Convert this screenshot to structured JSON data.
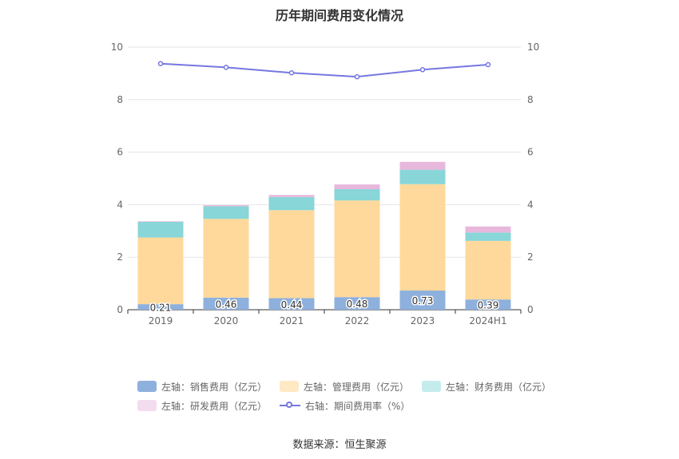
{
  "title": "历年期间费用变化情况",
  "source": "数据来源：恒生聚源",
  "colors": {
    "sales": "#8eb0dd",
    "admin": "#ffd99b",
    "finance": "#88d6d8",
    "rd": "#e7b8dc",
    "rate": "#7577e0",
    "legend_sales": "#8eb0dd",
    "legend_admin": "#ffe9c4",
    "legend_finance": "#c4ecec",
    "legend_rd": "#f3dcee"
  },
  "legend": [
    {
      "key": "sales",
      "label": "左轴：销售费用（亿元）"
    },
    {
      "key": "admin",
      "label": "左轴：管理费用（亿元）"
    },
    {
      "key": "finance",
      "label": "左轴：财务费用（亿元）"
    },
    {
      "key": "rd",
      "label": "左轴：研发费用（亿元）"
    },
    {
      "key": "rate",
      "label": "右轴：期间费用率（%）"
    }
  ],
  "chart_data": {
    "type": "bar",
    "stacked": true,
    "categories": [
      "2019",
      "2020",
      "2021",
      "2022",
      "2023",
      "2024H1"
    ],
    "series": [
      {
        "name": "左轴：销售费用（亿元）",
        "key": "sales",
        "axis": "left",
        "values": [
          0.21,
          0.46,
          0.44,
          0.48,
          0.73,
          0.39
        ],
        "labels": [
          "0.21",
          "0.46",
          "0.44",
          "0.48",
          "0.73",
          "0.39"
        ]
      },
      {
        "name": "左轴：管理费用（亿元）",
        "key": "admin",
        "axis": "left",
        "values": [
          2.54,
          3.0,
          3.35,
          3.68,
          4.05,
          2.23
        ]
      },
      {
        "name": "左轴：财务费用（亿元）",
        "key": "finance",
        "axis": "left",
        "values": [
          0.6,
          0.48,
          0.5,
          0.43,
          0.55,
          0.32
        ]
      },
      {
        "name": "左轴：研发费用（亿元）",
        "key": "rd",
        "axis": "left",
        "values": [
          0.02,
          0.04,
          0.08,
          0.18,
          0.3,
          0.23
        ]
      },
      {
        "name": "右轴：期间费用率（%）",
        "key": "rate",
        "axis": "right",
        "type": "line",
        "values": [
          9.37,
          9.23,
          9.02,
          8.87,
          9.14,
          9.33
        ]
      }
    ],
    "y_left": {
      "min": 0,
      "max": 10,
      "ticks": [
        "0",
        "2",
        "4",
        "6",
        "8",
        "10"
      ]
    },
    "y_right": {
      "min": 0,
      "max": 10,
      "ticks": [
        "0",
        "2",
        "4",
        "6",
        "8",
        "10"
      ]
    },
    "grid": true,
    "legend_position": "bottom"
  }
}
